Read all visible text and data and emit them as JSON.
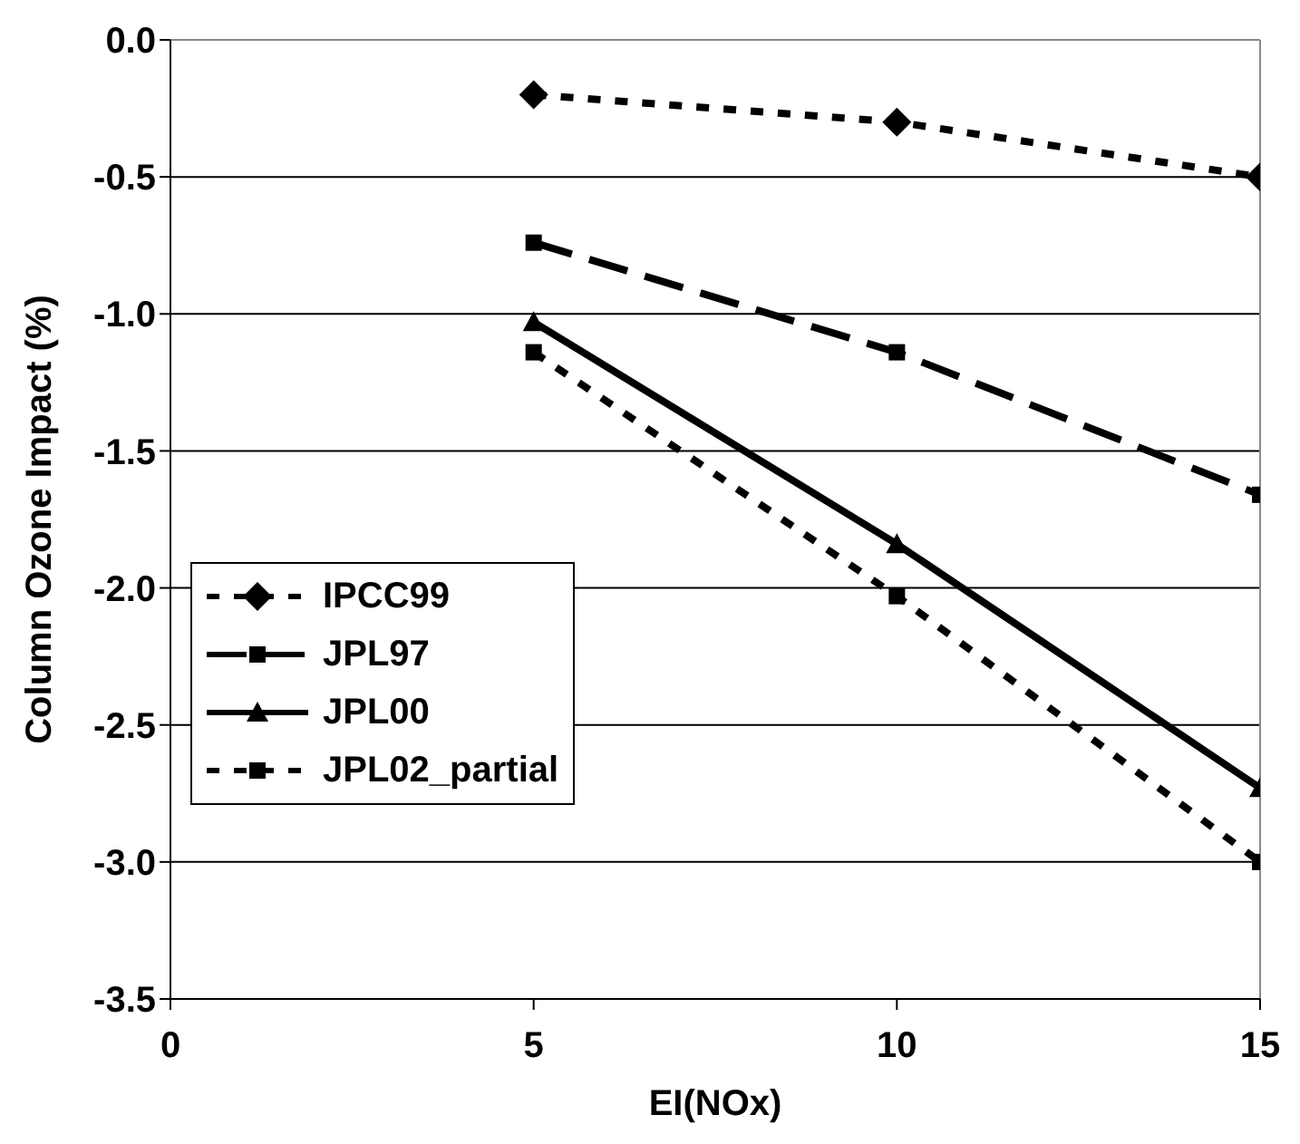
{
  "chart_data": {
    "type": "line",
    "xlabel": "EI(NOx)",
    "ylabel": "Column Ozone Impact (%)",
    "x": [
      5,
      10,
      15
    ],
    "xlim": [
      0,
      15
    ],
    "xticks": [
      0,
      5,
      10,
      15
    ],
    "ylim": [
      -3.5,
      0
    ],
    "yticks": [
      {
        "value": -3.5,
        "label": "-3.5"
      },
      {
        "value": -3,
        "label": "-3.0"
      },
      {
        "value": -2.5,
        "label": "-2.5"
      },
      {
        "value": -2,
        "label": "-2.0"
      },
      {
        "value": -1.5,
        "label": "-1.5"
      },
      {
        "value": -1,
        "label": "-1.0"
      },
      {
        "value": -0.5,
        "label": "-0.5"
      },
      {
        "value": 0,
        "label": "0.0"
      }
    ],
    "grid": "y",
    "legend": "left",
    "series": [
      {
        "name": "IPCC99",
        "color": "#000000",
        "values": [
          -0.2,
          -0.3,
          -0.5
        ],
        "marker": "diamond",
        "line_style": "dotted"
      },
      {
        "name": "JPL97",
        "color": "#000000",
        "values": [
          -0.74,
          -1.14,
          -1.66
        ],
        "marker": "square",
        "line_style": "dashed"
      },
      {
        "name": "JPL00",
        "color": "#000000",
        "values": [
          -1.03,
          -1.84,
          -2.73
        ],
        "marker": "triangle",
        "line_style": "solid"
      },
      {
        "name": "JPL02_partial",
        "color": "#000000",
        "values": [
          -1.14,
          -2.03,
          -3.0
        ],
        "marker": "square",
        "line_style": "dotted"
      }
    ]
  }
}
